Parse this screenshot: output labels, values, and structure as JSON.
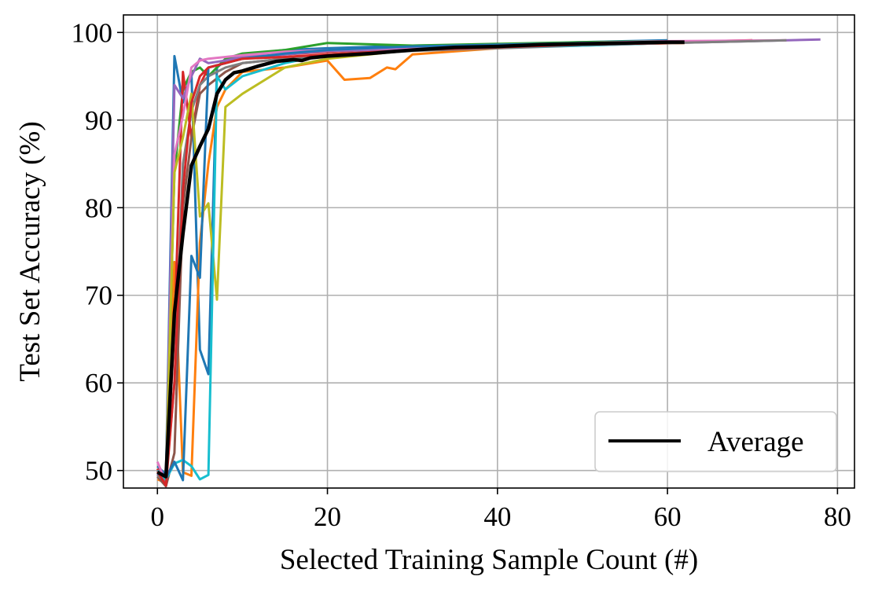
{
  "chart_data": {
    "type": "line",
    "title": "",
    "xlabel": "Selected Training Sample Count (#)",
    "ylabel": "Test Set Accuracy (%)",
    "xlim": [
      -4,
      82
    ],
    "ylim": [
      48,
      102
    ],
    "xticks": [
      0,
      20,
      40,
      60,
      80
    ],
    "yticks": [
      50,
      60,
      70,
      80,
      90,
      100
    ],
    "grid": true,
    "legend": {
      "placement": "lower-right",
      "entries": [
        "Average"
      ]
    },
    "average": {
      "name": "Average",
      "color": "#000000",
      "x": [
        0,
        1,
        2,
        3,
        4,
        5,
        6,
        7,
        8,
        9,
        10,
        12,
        14,
        16,
        17,
        18,
        20,
        25,
        30,
        35,
        40,
        45,
        50,
        55,
        60,
        62
      ],
      "y": [
        49.8,
        49.3,
        68.0,
        77.0,
        84.8,
        87.0,
        89.0,
        93.0,
        94.6,
        95.4,
        95.6,
        96.2,
        96.7,
        96.9,
        96.8,
        97.1,
        97.3,
        97.6,
        98.0,
        98.3,
        98.4,
        98.6,
        98.7,
        98.8,
        98.9,
        98.9
      ]
    },
    "series": [
      {
        "color": "#1f77b4",
        "x": [
          0,
          1,
          2,
          3,
          4,
          5,
          6,
          7,
          8,
          10,
          15,
          20,
          30,
          40,
          50,
          60
        ],
        "y": [
          50.5,
          49.5,
          97.3,
          92.0,
          95.5,
          63.8,
          61.0,
          96.0,
          96.8,
          97.5,
          98.0,
          98.2,
          98.5,
          98.6,
          98.9,
          99.1
        ]
      },
      {
        "color": "#ff7f0e",
        "x": [
          0,
          1,
          2,
          3,
          4,
          5,
          6,
          7,
          8,
          10,
          15,
          20,
          22,
          25,
          27,
          28,
          30,
          40,
          50,
          62
        ],
        "y": [
          49.0,
          48.6,
          73.8,
          49.8,
          49.4,
          76.0,
          85.0,
          91.5,
          93.5,
          95.5,
          96.0,
          96.8,
          94.6,
          94.8,
          96.0,
          95.8,
          97.5,
          98.2,
          98.6,
          98.8
        ]
      },
      {
        "color": "#2ca02c",
        "x": [
          0,
          1,
          2,
          3,
          4,
          5,
          6,
          8,
          10,
          15,
          20,
          30,
          40,
          50,
          60
        ],
        "y": [
          49.5,
          49.0,
          84.0,
          93.5,
          95.5,
          96.0,
          95.0,
          97.0,
          97.6,
          98.0,
          98.8,
          98.5,
          98.7,
          98.9,
          99.0
        ]
      },
      {
        "color": "#d62728",
        "x": [
          0,
          1,
          2,
          3,
          4,
          5,
          6,
          8,
          10,
          15,
          20,
          30,
          40,
          50,
          60,
          70
        ],
        "y": [
          50.2,
          48.4,
          66.0,
          95.5,
          88.0,
          94.0,
          96.0,
          96.5,
          97.0,
          97.5,
          97.8,
          98.2,
          98.5,
          98.8,
          98.9,
          99.1
        ]
      },
      {
        "color": "#9467bd",
        "x": [
          0,
          1,
          2,
          3,
          4,
          5,
          6,
          8,
          10,
          15,
          20,
          30,
          40,
          50,
          60,
          70,
          78
        ],
        "y": [
          49.6,
          48.5,
          94.0,
          92.5,
          95.0,
          97.0,
          96.5,
          96.8,
          97.2,
          97.5,
          97.9,
          98.1,
          98.4,
          98.8,
          98.8,
          99.0,
          99.2
        ]
      },
      {
        "color": "#8c564b",
        "x": [
          0,
          1,
          2,
          3,
          4,
          5,
          6,
          8,
          10,
          15,
          20,
          30,
          40,
          50,
          62
        ],
        "y": [
          49.3,
          48.2,
          52.0,
          80.0,
          88.0,
          93.0,
          94.0,
          95.5,
          96.5,
          97.0,
          97.5,
          98.0,
          98.3,
          98.6,
          98.8
        ]
      },
      {
        "color": "#e377c2",
        "x": [
          0,
          1,
          2,
          3,
          4,
          5,
          6,
          8,
          10,
          15,
          20,
          30,
          40,
          50,
          60,
          74
        ],
        "y": [
          51.0,
          48.6,
          86.0,
          90.5,
          96.0,
          96.8,
          97.0,
          97.2,
          97.4,
          97.8,
          98.0,
          98.3,
          98.6,
          98.8,
          99.0,
          99.1
        ]
      },
      {
        "color": "#7f7f7f",
        "x": [
          0,
          1,
          2,
          3,
          4,
          5,
          6,
          8,
          10,
          15,
          20,
          25,
          30,
          40,
          50,
          60,
          70,
          74
        ],
        "y": [
          49.4,
          48.8,
          60.0,
          85.0,
          91.0,
          94.0,
          95.0,
          96.0,
          96.5,
          97.0,
          97.3,
          97.6,
          97.9,
          98.2,
          98.5,
          98.8,
          99.0,
          99.1
        ]
      },
      {
        "color": "#bcbd22",
        "x": [
          0,
          1,
          2,
          3,
          4,
          5,
          6,
          7,
          8,
          10,
          15,
          20,
          30,
          40,
          50,
          60
        ],
        "y": [
          49.8,
          49.2,
          84.0,
          88.0,
          93.0,
          79.0,
          80.5,
          69.5,
          91.5,
          93.0,
          96.0,
          97.0,
          98.0,
          98.3,
          98.6,
          98.9
        ]
      },
      {
        "color": "#17becf",
        "x": [
          0,
          1,
          2,
          3,
          4,
          5,
          6,
          7,
          8,
          10,
          15,
          20,
          30,
          40,
          50,
          60
        ],
        "y": [
          50.0,
          49.0,
          50.8,
          51.2,
          50.5,
          49.0,
          49.5,
          95.0,
          93.5,
          95.0,
          96.5,
          97.5,
          98.0,
          98.3,
          98.5,
          98.8
        ]
      },
      {
        "color": "#1f77b4",
        "x": [
          0,
          1,
          2,
          3,
          4,
          5,
          6,
          8,
          10,
          15,
          20,
          30,
          40,
          50,
          60
        ],
        "y": [
          49.7,
          49.2,
          51.0,
          48.9,
          74.5,
          72.0,
          96.0,
          96.5,
          97.0,
          97.6,
          98.0,
          98.4,
          98.6,
          98.8,
          98.9
        ]
      },
      {
        "color": "#d62728",
        "x": [
          0,
          1,
          2,
          3,
          4,
          5,
          6,
          8,
          10,
          15,
          20,
          30,
          40,
          50,
          60
        ],
        "y": [
          49.9,
          48.3,
          60.0,
          82.0,
          92.0,
          95.0,
          96.0,
          96.5,
          97.0,
          97.2,
          97.5,
          98.0,
          98.3,
          98.6,
          98.8
        ]
      }
    ]
  }
}
